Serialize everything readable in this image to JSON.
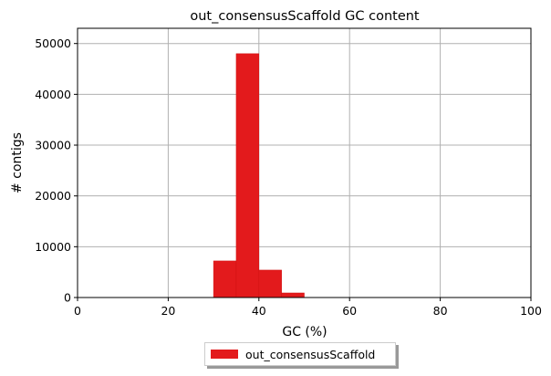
{
  "chart_data": {
    "type": "bar",
    "title": "out_consensusScaffold GC content",
    "xlabel": "GC (%)",
    "ylabel": "# contigs",
    "xlim": [
      0,
      100
    ],
    "ylim": [
      0,
      53000
    ],
    "xticks": [
      0,
      20,
      40,
      60,
      80,
      100
    ],
    "yticks": [
      0,
      10000,
      20000,
      30000,
      40000,
      50000
    ],
    "grid": true,
    "legend_position": "bottom-center",
    "bin_width": 5,
    "series": [
      {
        "name": "out_consensusScaffold",
        "color": "#e31a1c",
        "bins": [
          {
            "x": 30,
            "value": 7200
          },
          {
            "x": 35,
            "value": 48000
          },
          {
            "x": 40,
            "value": 5400
          },
          {
            "x": 45,
            "value": 900
          }
        ]
      }
    ]
  }
}
